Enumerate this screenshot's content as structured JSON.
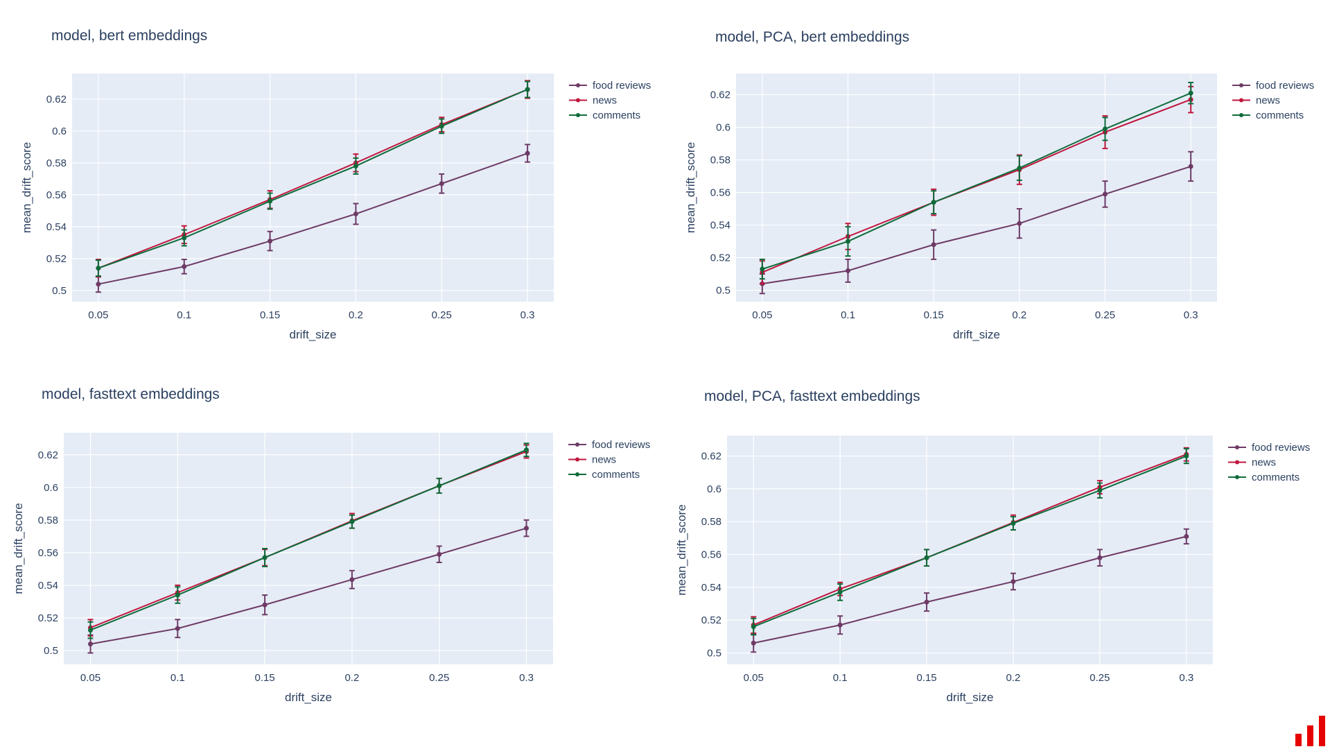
{
  "colors": {
    "food reviews": "#6e3a66",
    "news": "#c0163d",
    "comments": "#0f6b3a",
    "plot_bg": "#e5ecf6",
    "logo": "#e60000"
  },
  "chart_data": [
    {
      "type": "line",
      "title": "model, bert embeddings",
      "xlabel": "drift_size",
      "ylabel": "mean_drift_score",
      "x": [
        0.05,
        0.1,
        0.15,
        0.2,
        0.25,
        0.3
      ],
      "xlim": [
        0.0347,
        0.3153
      ],
      "ylim": [
        0.493,
        0.636
      ],
      "yticks": [
        0.5,
        0.52,
        0.54,
        0.56,
        0.58,
        0.6,
        0.62
      ],
      "xticks": [
        "0.05",
        "0.1",
        "0.15",
        "0.2",
        "0.25",
        "0.3"
      ],
      "ytick_labels": [
        "0.5",
        "0.52",
        "0.54",
        "0.56",
        "0.58",
        "0.6",
        "0.62"
      ],
      "grid": true,
      "legend": "top-right",
      "series": [
        {
          "name": "food reviews",
          "values": [
            0.504,
            0.515,
            0.531,
            0.548,
            0.567,
            0.586
          ],
          "error": [
            0.005,
            0.0045,
            0.006,
            0.0065,
            0.006,
            0.0055
          ]
        },
        {
          "name": "news",
          "values": [
            0.514,
            0.535,
            0.557,
            0.58,
            0.604,
            0.626
          ],
          "error": [
            0.0055,
            0.0055,
            0.0055,
            0.0055,
            0.0045,
            0.0055
          ]
        },
        {
          "name": "comments",
          "values": [
            0.514,
            0.533,
            0.556,
            0.578,
            0.603,
            0.626
          ],
          "error": [
            0.005,
            0.005,
            0.005,
            0.005,
            0.0045,
            0.005
          ]
        }
      ]
    },
    {
      "type": "line",
      "title": "model, PCA, bert embeddings",
      "xlabel": "drift_size",
      "ylabel": "mean_drift_score",
      "x": [
        0.05,
        0.1,
        0.15,
        0.2,
        0.25,
        0.3
      ],
      "xlim": [
        0.0347,
        0.3153
      ],
      "ylim": [
        0.493,
        0.633
      ],
      "yticks": [
        0.5,
        0.52,
        0.54,
        0.56,
        0.58,
        0.6,
        0.62
      ],
      "xticks": [
        "0.05",
        "0.1",
        "0.15",
        "0.2",
        "0.25",
        "0.3"
      ],
      "ytick_labels": [
        "0.5",
        "0.52",
        "0.54",
        "0.56",
        "0.58",
        "0.6",
        "0.62"
      ],
      "grid": true,
      "legend": "top-right",
      "series": [
        {
          "name": "food reviews",
          "values": [
            0.504,
            0.512,
            0.528,
            0.541,
            0.559,
            0.576
          ],
          "error": [
            0.006,
            0.007,
            0.009,
            0.009,
            0.008,
            0.009
          ]
        },
        {
          "name": "news",
          "values": [
            0.511,
            0.533,
            0.554,
            0.574,
            0.597,
            0.617
          ],
          "error": [
            0.007,
            0.008,
            0.008,
            0.009,
            0.01,
            0.008
          ]
        },
        {
          "name": "comments",
          "values": [
            0.513,
            0.53,
            0.554,
            0.575,
            0.599,
            0.621
          ],
          "error": [
            0.006,
            0.009,
            0.007,
            0.0075,
            0.007,
            0.0065
          ]
        }
      ]
    },
    {
      "type": "line",
      "title": "model, fasttext embeddings",
      "xlabel": "drift_size",
      "ylabel": "mean_drift_score",
      "x": [
        0.05,
        0.1,
        0.15,
        0.2,
        0.25,
        0.3
      ],
      "xlim": [
        0.0347,
        0.3153
      ],
      "ylim": [
        0.4915,
        0.6335
      ],
      "yticks": [
        0.5,
        0.52,
        0.54,
        0.56,
        0.58,
        0.6,
        0.62
      ],
      "xticks": [
        "0.05",
        "0.1",
        "0.15",
        "0.2",
        "0.25",
        "0.3"
      ],
      "ytick_labels": [
        "0.5",
        "0.52",
        "0.54",
        "0.56",
        "0.58",
        "0.6",
        "0.62"
      ],
      "grid": true,
      "legend": "top-right",
      "series": [
        {
          "name": "food reviews",
          "values": [
            0.504,
            0.5135,
            0.528,
            0.5435,
            0.559,
            0.575
          ],
          "error": [
            0.0055,
            0.0055,
            0.006,
            0.0055,
            0.005,
            0.005
          ]
        },
        {
          "name": "news",
          "values": [
            0.514,
            0.5355,
            0.557,
            0.5795,
            0.601,
            0.622
          ],
          "error": [
            0.005,
            0.0045,
            0.005,
            0.0045,
            0.0045,
            0.004
          ]
        },
        {
          "name": "comments",
          "values": [
            0.5125,
            0.534,
            0.557,
            0.579,
            0.601,
            0.623
          ],
          "error": [
            0.005,
            0.005,
            0.0055,
            0.004,
            0.0045,
            0.004
          ]
        }
      ]
    },
    {
      "type": "line",
      "title": "model, PCA, fasttext embeddings",
      "xlabel": "drift_size",
      "ylabel": "mean_drift_score",
      "x": [
        0.05,
        0.1,
        0.15,
        0.2,
        0.25,
        0.3
      ],
      "xlim": [
        0.0347,
        0.3153
      ],
      "ylim": [
        0.493,
        0.6325
      ],
      "yticks": [
        0.5,
        0.52,
        0.54,
        0.56,
        0.58,
        0.6,
        0.62
      ],
      "xticks": [
        "0.05",
        "0.1",
        "0.15",
        "0.2",
        "0.25",
        "0.3"
      ],
      "ytick_labels": [
        "0.5",
        "0.52",
        "0.54",
        "0.56",
        "0.58",
        "0.6",
        "0.62"
      ],
      "grid": true,
      "legend": "top-right",
      "series": [
        {
          "name": "food reviews",
          "values": [
            0.506,
            0.517,
            0.531,
            0.5435,
            0.558,
            0.571
          ],
          "error": [
            0.0055,
            0.0055,
            0.0055,
            0.005,
            0.005,
            0.0045
          ]
        },
        {
          "name": "news",
          "values": [
            0.517,
            0.539,
            0.558,
            0.5795,
            0.601,
            0.621
          ],
          "error": [
            0.005,
            0.004,
            0.005,
            0.0045,
            0.004,
            0.004
          ]
        },
        {
          "name": "comments",
          "values": [
            0.516,
            0.537,
            0.558,
            0.579,
            0.599,
            0.62
          ],
          "error": [
            0.005,
            0.005,
            0.005,
            0.004,
            0.0045,
            0.0045
          ]
        }
      ]
    }
  ]
}
